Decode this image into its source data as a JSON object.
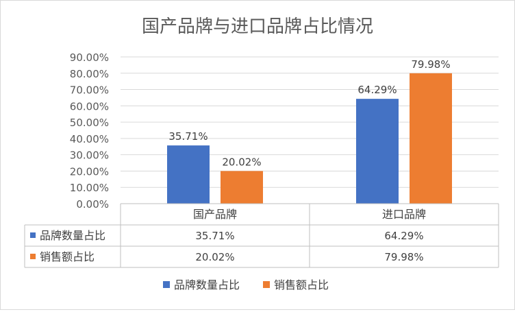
{
  "chart_data": {
    "type": "bar",
    "title": "国产品牌与进口品牌占比情况",
    "categories": [
      "国产品牌",
      "进口品牌"
    ],
    "series": [
      {
        "name": "品牌数量占比",
        "values": [
          35.71,
          64.29
        ],
        "labels": [
          "35.71%",
          "64.29%"
        ],
        "color": "#4472C4"
      },
      {
        "name": "销售额占比",
        "values": [
          20.02,
          79.98
        ],
        "labels": [
          "20.02%",
          "79.98%"
        ],
        "color": "#ED7D31"
      }
    ],
    "ylim": [
      0,
      90
    ],
    "ytick_labels": [
      "0.00%",
      "10.00%",
      "20.00%",
      "30.00%",
      "40.00%",
      "50.00%",
      "60.00%",
      "70.00%",
      "80.00%",
      "90.00%"
    ],
    "grid": true,
    "legend": "bottom",
    "data_table": true
  }
}
